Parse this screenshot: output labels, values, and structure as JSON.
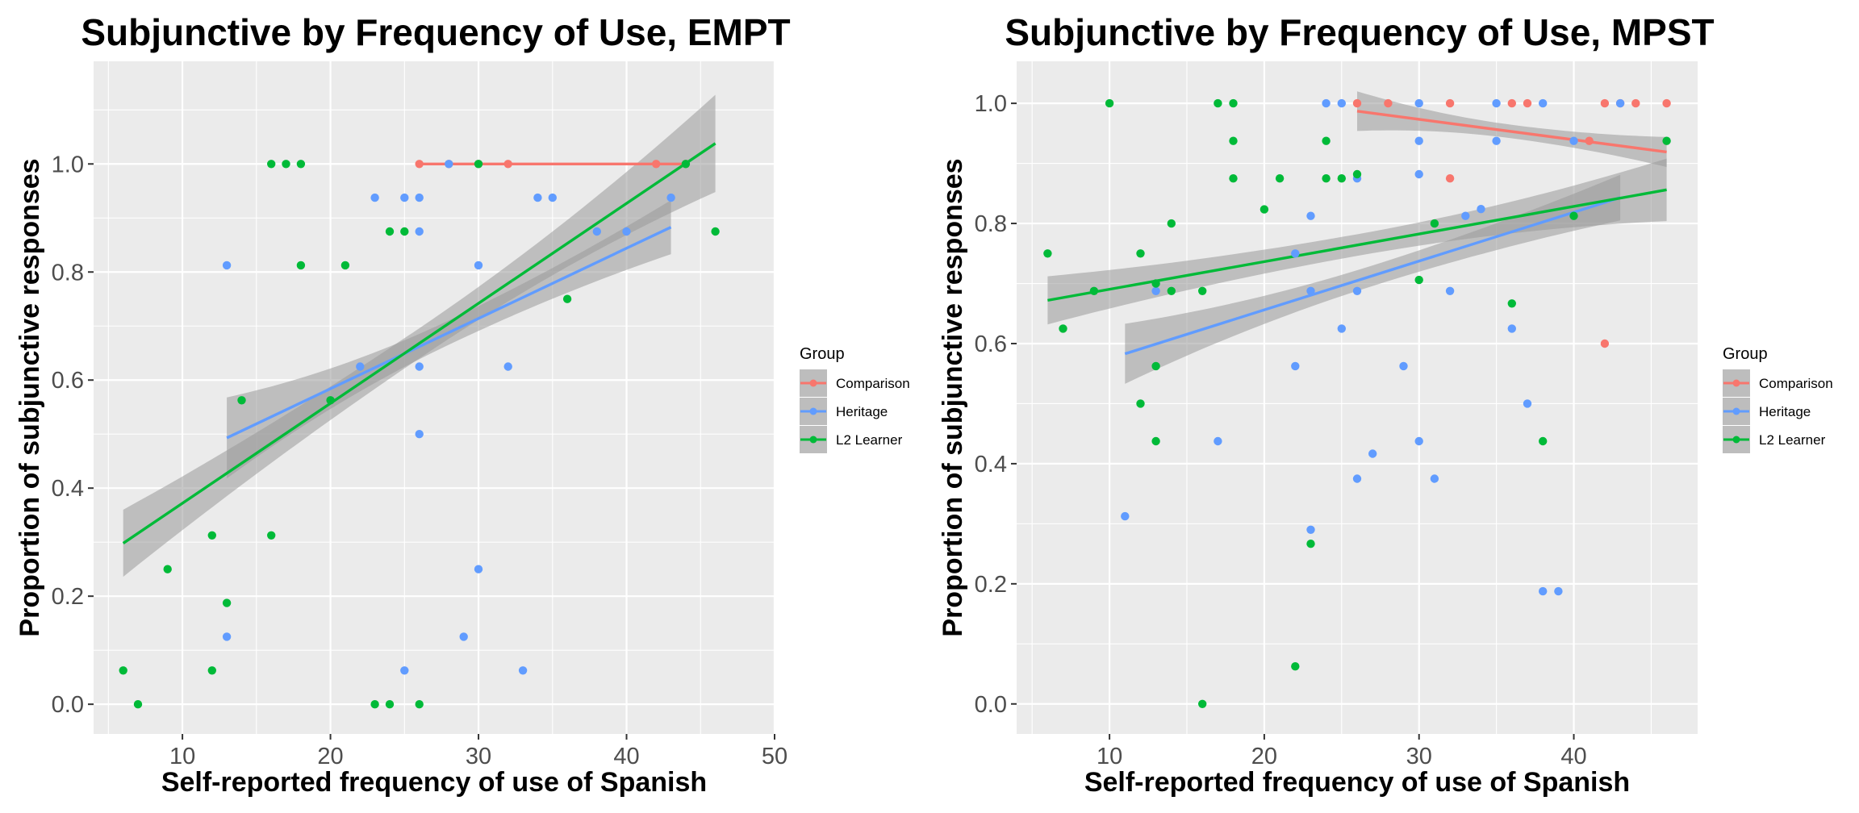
{
  "colors": {
    "comparison": "#F8766D",
    "heritage": "#619CFF",
    "l2_learner": "#00BA38",
    "panel_bg": "#EBEBEB",
    "grid": "#FFFFFF",
    "ribbon": "#999999"
  },
  "chart_data": [
    {
      "type": "scatter",
      "title": "Subjunctive by Frequency of Use, EMPT",
      "xlabel": "Self-reported frequency of use of Spanish",
      "ylabel": "Proportion of subjunctive responses",
      "xlim": [
        4,
        50
      ],
      "ylim": [
        -0.055,
        1.19
      ],
      "xticks": [
        10,
        20,
        30,
        40,
        50
      ],
      "yticks": [
        0.0,
        0.2,
        0.4,
        0.6,
        0.8,
        1.0
      ],
      "xtick_labels": [
        "10",
        "20",
        "30",
        "40",
        "50"
      ],
      "ytick_labels": [
        "0.0",
        "0.2",
        "0.4",
        "0.6",
        "0.8",
        "1.0"
      ],
      "grid": true,
      "legend": {
        "title": "Group",
        "position": "right",
        "entries": [
          "Comparison",
          "Heritage",
          "L2 Learner"
        ]
      },
      "series": [
        {
          "name": "Comparison",
          "color_key": "comparison",
          "points": [
            [
              26,
              1.0
            ],
            [
              28,
              1.0
            ],
            [
              30,
              1.0
            ],
            [
              32,
              1.0
            ],
            [
              42,
              1.0
            ],
            [
              44,
              1.0
            ]
          ],
          "fit": {
            "x": [
              26,
              44
            ],
            "y": [
              1.0,
              1.0
            ],
            "se": [
              0.0,
              0.0
            ]
          }
        },
        {
          "name": "Heritage",
          "color_key": "heritage",
          "points": [
            [
              13,
              0.8125
            ],
            [
              13,
              0.125
            ],
            [
              22,
              0.625
            ],
            [
              23,
              0.9375
            ],
            [
              25,
              0.9375
            ],
            [
              25,
              0.0625
            ],
            [
              26,
              0.9375
            ],
            [
              26,
              0.875
            ],
            [
              26,
              0.625
            ],
            [
              26,
              0.5
            ],
            [
              28,
              1.0
            ],
            [
              29,
              0.125
            ],
            [
              30,
              0.8125
            ],
            [
              30,
              0.25
            ],
            [
              32,
              0.625
            ],
            [
              33,
              0.0625
            ],
            [
              34,
              0.9375
            ],
            [
              35,
              0.9375
            ],
            [
              38,
              0.875
            ],
            [
              40,
              0.875
            ],
            [
              43,
              0.9375
            ]
          ],
          "fit": {
            "x": [
              13,
              43
            ],
            "y": [
              0.493,
              0.883
            ],
            "se": [
              0.075,
              0.05
            ]
          }
        },
        {
          "name": "L2 Learner",
          "color_key": "l2_learner",
          "points": [
            [
              6,
              0.0625
            ],
            [
              7,
              0.0
            ],
            [
              9,
              0.25
            ],
            [
              12,
              0.3125
            ],
            [
              12,
              0.0625
            ],
            [
              13,
              0.1875
            ],
            [
              14,
              0.5625
            ],
            [
              16,
              1.0
            ],
            [
              16,
              0.3125
            ],
            [
              17,
              1.0
            ],
            [
              18,
              1.0
            ],
            [
              18,
              0.8125
            ],
            [
              20,
              0.5625
            ],
            [
              21,
              0.8125
            ],
            [
              23,
              0.0
            ],
            [
              24,
              0.875
            ],
            [
              24,
              0.0
            ],
            [
              25,
              0.875
            ],
            [
              26,
              0.0
            ],
            [
              30,
              1.0
            ],
            [
              36,
              0.75
            ],
            [
              44,
              1.0
            ],
            [
              46,
              0.875
            ]
          ],
          "fit": {
            "x": [
              6,
              46
            ],
            "y": [
              0.298,
              1.038
            ],
            "se": [
              0.062,
              0.09
            ]
          }
        }
      ]
    },
    {
      "type": "scatter",
      "title": "Subjunctive by Frequency of Use, MPST",
      "xlabel": "Self-reported frequency of use of Spanish",
      "ylabel": "Proportion of subjunctive responses",
      "xlim": [
        4,
        48
      ],
      "ylim": [
        -0.05,
        1.07
      ],
      "xticks": [
        10,
        20,
        30,
        40
      ],
      "yticks": [
        0.0,
        0.2,
        0.4,
        0.6,
        0.8,
        1.0
      ],
      "xtick_labels": [
        "10",
        "20",
        "30",
        "40"
      ],
      "ytick_labels": [
        "0.0",
        "0.2",
        "0.4",
        "0.6",
        "0.8",
        "1.0"
      ],
      "grid": true,
      "legend": {
        "title": "Group",
        "position": "right",
        "entries": [
          "Comparison",
          "Heritage",
          "L2 Learner"
        ]
      },
      "series": [
        {
          "name": "Comparison",
          "color_key": "comparison",
          "points": [
            [
              26,
              1.0
            ],
            [
              28,
              1.0
            ],
            [
              32,
              1.0
            ],
            [
              32,
              0.875
            ],
            [
              36,
              1.0
            ],
            [
              37,
              1.0
            ],
            [
              41,
              0.9375
            ],
            [
              42,
              1.0
            ],
            [
              42,
              0.6
            ],
            [
              43,
              1.0
            ],
            [
              44,
              1.0
            ],
            [
              46,
              1.0
            ]
          ],
          "fit": {
            "x": [
              26,
              46
            ],
            "y": [
              0.987,
              0.919
            ],
            "se": [
              0.033,
              0.025
            ]
          }
        },
        {
          "name": "Heritage",
          "color_key": "heritage",
          "points": [
            [
              11,
              0.3125
            ],
            [
              13,
              0.6875
            ],
            [
              17,
              0.4375
            ],
            [
              22,
              0.75
            ],
            [
              22,
              0.5625
            ],
            [
              23,
              0.8125
            ],
            [
              23,
              0.6875
            ],
            [
              23,
              0.29
            ],
            [
              24,
              1.0
            ],
            [
              25,
              1.0
            ],
            [
              25,
              0.625
            ],
            [
              26,
              0.875
            ],
            [
              26,
              0.6875
            ],
            [
              26,
              0.375
            ],
            [
              27,
              0.4167
            ],
            [
              29,
              0.5625
            ],
            [
              30,
              1.0
            ],
            [
              30,
              0.9375
            ],
            [
              30,
              0.882
            ],
            [
              30,
              0.4375
            ],
            [
              31,
              0.375
            ],
            [
              32,
              0.6875
            ],
            [
              33,
              0.8125
            ],
            [
              34,
              0.824
            ],
            [
              35,
              1.0
            ],
            [
              35,
              0.9375
            ],
            [
              36,
              0.625
            ],
            [
              37,
              0.5
            ],
            [
              38,
              1.0
            ],
            [
              38,
              0.1875
            ],
            [
              39,
              0.1875
            ],
            [
              40,
              0.9375
            ],
            [
              43,
              1.0
            ]
          ],
          "fit": {
            "x": [
              11,
              43
            ],
            "y": [
              0.583,
              0.843
            ],
            "se": [
              0.05,
              0.038
            ]
          }
        },
        {
          "name": "L2 Learner",
          "color_key": "l2_learner",
          "points": [
            [
              6,
              0.75
            ],
            [
              7,
              0.625
            ],
            [
              9,
              0.6875
            ],
            [
              10,
              1.0
            ],
            [
              12,
              0.75
            ],
            [
              12,
              0.5
            ],
            [
              13,
              0.5625
            ],
            [
              13,
              0.4375
            ],
            [
              13,
              0.7
            ],
            [
              14,
              0.8
            ],
            [
              14,
              0.6875
            ],
            [
              16,
              0.6875
            ],
            [
              16,
              0.0
            ],
            [
              17,
              1.0
            ],
            [
              18,
              1.0
            ],
            [
              18,
              0.9375
            ],
            [
              18,
              0.875
            ],
            [
              20,
              0.8235
            ],
            [
              21,
              0.875
            ],
            [
              22,
              0.0625
            ],
            [
              23,
              0.2667
            ],
            [
              24,
              0.9375
            ],
            [
              24,
              0.875
            ],
            [
              25,
              0.875
            ],
            [
              26,
              0.882
            ],
            [
              30,
              0.7059
            ],
            [
              31,
              0.8
            ],
            [
              36,
              0.6667
            ],
            [
              38,
              0.4375
            ],
            [
              40,
              0.8125
            ],
            [
              46,
              0.9375
            ]
          ],
          "fit": {
            "x": [
              6,
              46
            ],
            "y": [
              0.672,
              0.856
            ],
            "se": [
              0.04,
              0.052
            ]
          }
        }
      ]
    }
  ]
}
